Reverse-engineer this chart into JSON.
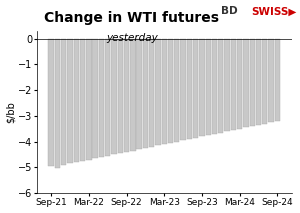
{
  "title": "Change in WTI futures",
  "subtitle": "yesterday",
  "ylabel": "$/bb",
  "ylim": [
    -6,
    0.3
  ],
  "yticks": [
    0,
    -1,
    -2,
    -3,
    -4,
    -5,
    -6
  ],
  "bar_color": "#c8c8c8",
  "bar_edge_color": "#aaaaaa",
  "background_color": "#ffffff",
  "x_labels": [
    "Sep-21",
    "Mar-22",
    "Sep-22",
    "Mar-23",
    "Sep-23",
    "Mar-24",
    "Sep-24"
  ],
  "values": [
    -4.95,
    -5.05,
    -4.9,
    -4.85,
    -4.8,
    -4.75,
    -4.7,
    -4.65,
    -4.6,
    -4.55,
    -4.5,
    -4.45,
    -4.4,
    -4.35,
    -4.3,
    -4.25,
    -4.2,
    -4.15,
    -4.1,
    -4.05,
    -4.0,
    -3.95,
    -3.9,
    -3.85,
    -3.8,
    -3.75,
    -3.7,
    -3.65,
    -3.6,
    -3.55,
    -3.5,
    -3.45,
    -3.4,
    -3.35,
    -3.3,
    -3.25,
    -3.2
  ],
  "n_bars": 37,
  "logo_bd_color": "#333333",
  "logo_swiss_color": "#cc0000",
  "title_fontsize": 10,
  "subtitle_fontsize": 7.5,
  "ylabel_fontsize": 7
}
